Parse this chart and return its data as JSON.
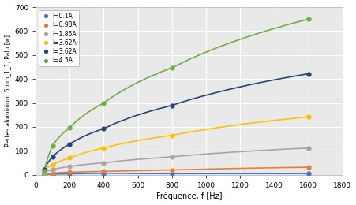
{
  "xlabel": "Fréquence, f [Hz]",
  "ylabel": "Pertes aluminium 5mm_1_1, Palu [w]",
  "xlim": [
    0,
    1800
  ],
  "ylim": [
    0,
    700
  ],
  "xticks": [
    0,
    200,
    400,
    600,
    800,
    1000,
    1200,
    1400,
    1600,
    1800
  ],
  "yticks": [
    0,
    100,
    200,
    300,
    400,
    500,
    600,
    700
  ],
  "series": [
    {
      "label": "I=0.1A",
      "color": "#4472C4",
      "marker": "o",
      "x": [
        50,
        100,
        200,
        400,
        800,
        1600
      ],
      "y": [
        2.0,
        3.0,
        4.5,
        6.5,
        5.0,
        5.5
      ]
    },
    {
      "label": "I=0.98A",
      "color": "#ED7D31",
      "marker": "o",
      "x": [
        50,
        100,
        200,
        400,
        800,
        1600
      ],
      "y": [
        4,
        7,
        11,
        14,
        20,
        32
      ]
    },
    {
      "label": "I=1.86A",
      "color": "#A5A5A5",
      "marker": "o",
      "x": [
        50,
        100,
        200,
        400,
        800,
        1600
      ],
      "y": [
        10,
        22,
        35,
        50,
        75,
        112
      ]
    },
    {
      "label": "I=3.62A",
      "color": "#FFC000",
      "marker": "o",
      "x": [
        50,
        100,
        200,
        400,
        800,
        1600
      ],
      "y": [
        18,
        42,
        70,
        112,
        165,
        242
      ]
    },
    {
      "label": "I=3.62A",
      "color": "#264478",
      "marker": "o",
      "x": [
        50,
        100,
        200,
        400,
        800,
        1600
      ],
      "y": [
        22,
        75,
        128,
        193,
        290,
        422
      ]
    },
    {
      "label": "I=4.5A",
      "color": "#70AD47",
      "marker": "o",
      "x": [
        50,
        100,
        200,
        400,
        800,
        1600
      ],
      "y": [
        14,
        122,
        197,
        300,
        447,
        650
      ]
    }
  ],
  "legend_loc": "upper left",
  "background_color": "#FFFFFF",
  "plot_bg_color": "#E9E9E9"
}
